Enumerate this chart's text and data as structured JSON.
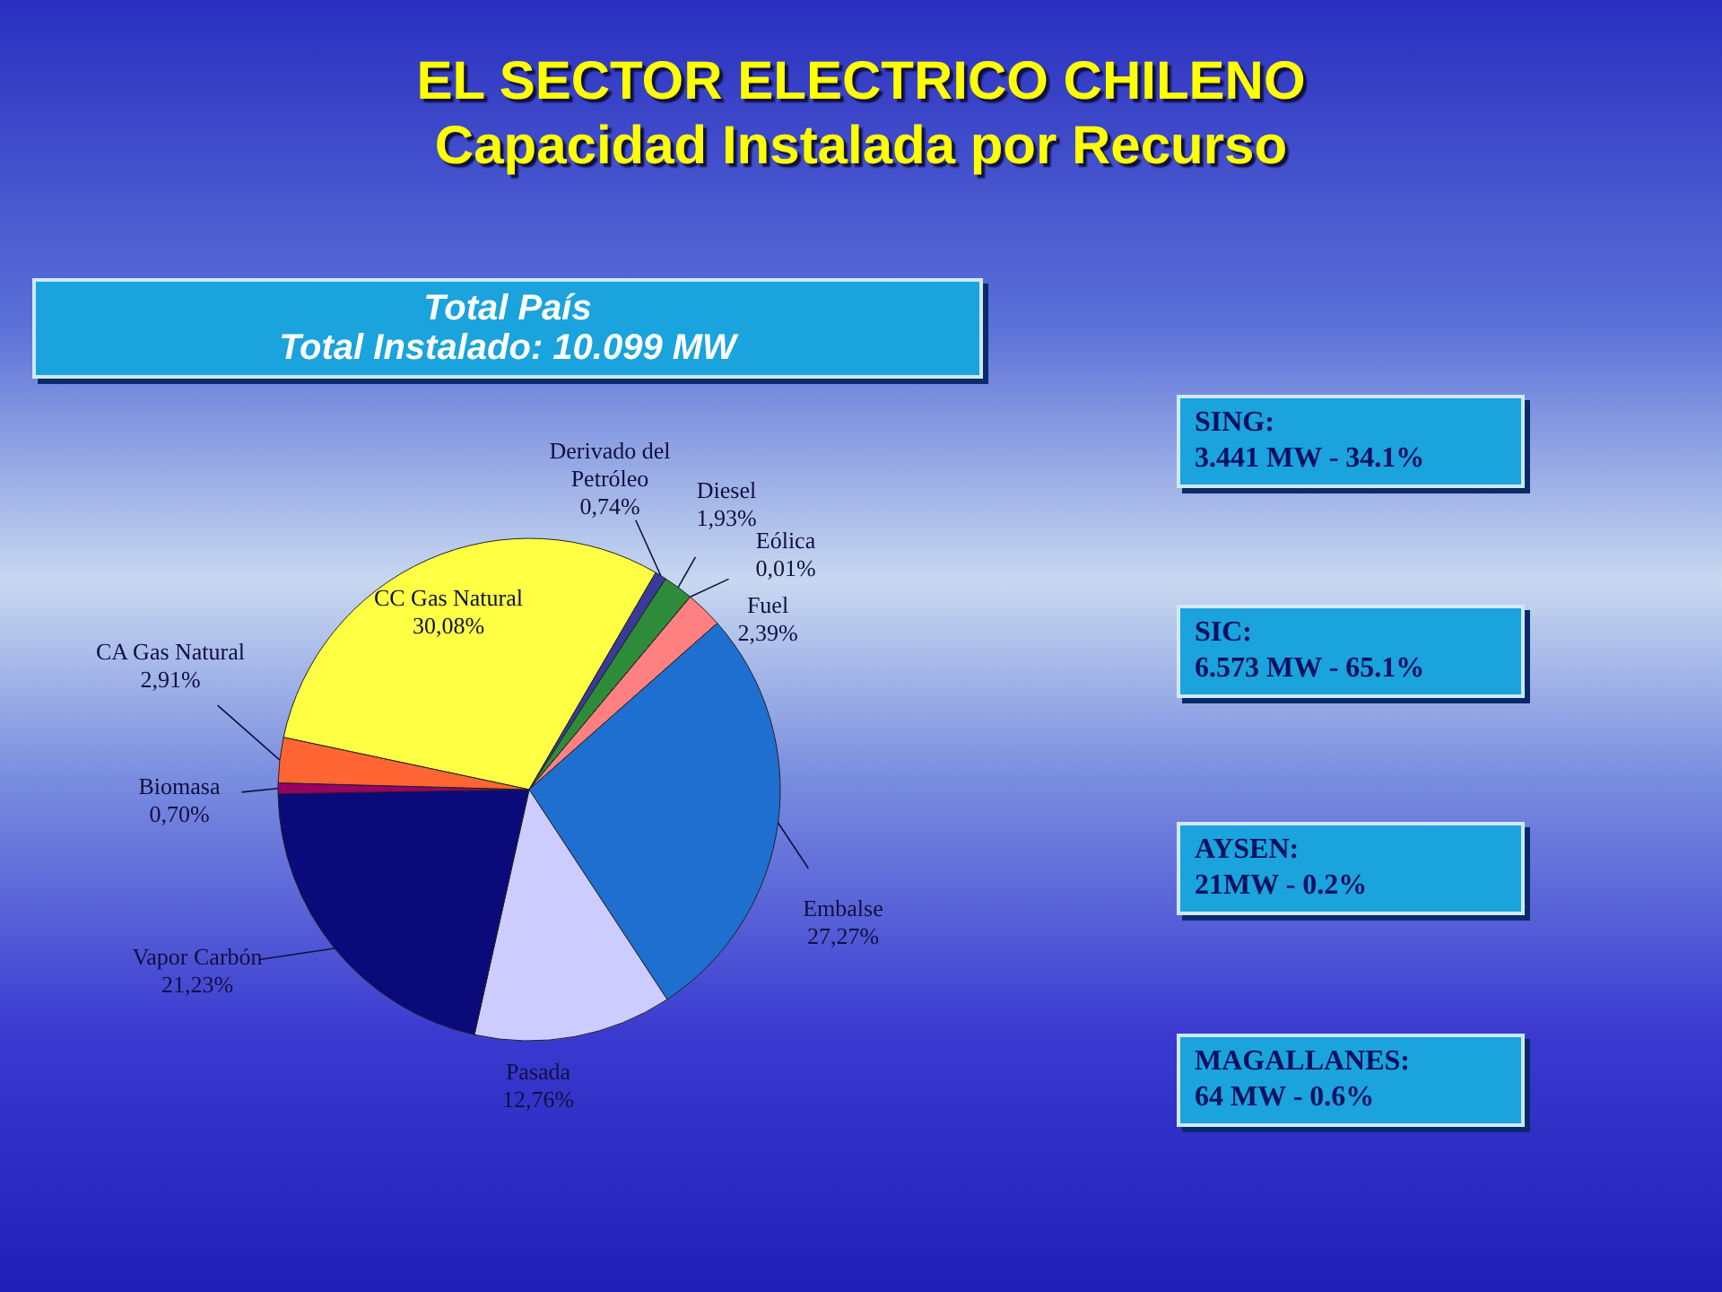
{
  "chart_data": {
    "type": "pie",
    "title": "EL SECTOR ELECTRICO CHILENO",
    "subtitle": "Capacidad Instalada por Recurso",
    "categories": [
      "CC Gas Natural",
      "Derivado del Petróleo",
      "Diesel",
      "Eólica",
      "Fuel",
      "Embalse",
      "Pasada",
      "Vapor Carbón",
      "Biomasa",
      "CA Gas Natural"
    ],
    "values": [
      30.08,
      0.74,
      1.93,
      0.01,
      2.39,
      27.27,
      12.76,
      21.23,
      0.7,
      2.91
    ],
    "value_labels": [
      "30,08%",
      "0,74%",
      "1,93%",
      "0,01%",
      "2,39%",
      "27,27%",
      "12,76%",
      "21,23%",
      "0,70%",
      "2,91%"
    ],
    "colors": [
      "#ffff44",
      "#3a3a9a",
      "#2e8b3a",
      "#9999ff",
      "#ff8080",
      "#1e6fd0",
      "#ccccff",
      "#0a0a7a",
      "#990066",
      "#ff6633"
    ],
    "annotations": [
      "Total País",
      "Total Instalado: 10.099 MW",
      "SING:",
      "3.441 MW - 34.1%",
      "SIC:",
      "6.573 MW - 65.1%",
      "AYSEN:",
      "21MW - 0.2%",
      "MAGALLANES:",
      "64 MW - 0.6%"
    ]
  }
}
